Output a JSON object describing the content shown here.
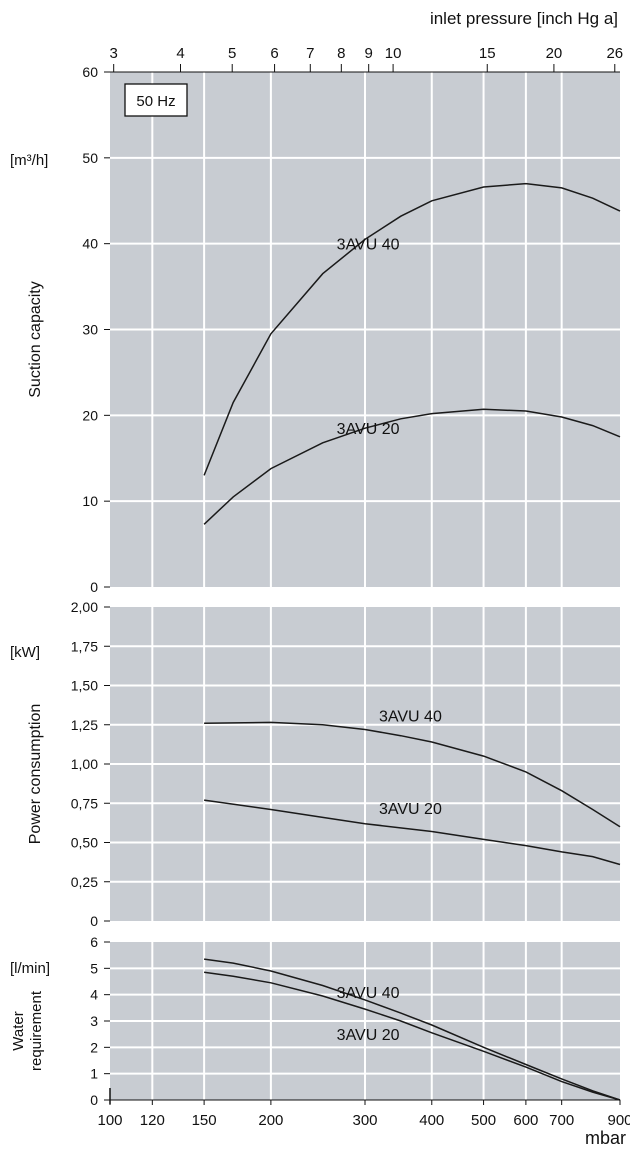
{
  "chart_data": [
    {
      "type": "line",
      "x_scale": "log",
      "xlim": [
        100,
        900
      ],
      "ylim": [
        0,
        60
      ],
      "ylabel": "Suction capacity",
      "unit": "[m³/h]",
      "y_ticks": [
        "0",
        "10",
        "20",
        "30",
        "40",
        "50",
        "60"
      ],
      "badge": "50 Hz",
      "top_axis": {
        "label": "inlet pressure [inch Hg a]",
        "ticks": [
          {
            "label": "3",
            "mbar": 101.6
          },
          {
            "label": "4",
            "mbar": 135.5
          },
          {
            "label": "5",
            "mbar": 169.3
          },
          {
            "label": "6",
            "mbar": 203.2
          },
          {
            "label": "7",
            "mbar": 237.0
          },
          {
            "label": "8",
            "mbar": 270.9
          },
          {
            "label": "9",
            "mbar": 304.8
          },
          {
            "label": "10",
            "mbar": 338.6
          },
          {
            "label": "15",
            "mbar": 508
          },
          {
            "label": "20",
            "mbar": 677
          },
          {
            "label": "26",
            "mbar": 880
          }
        ]
      },
      "series": [
        {
          "name": "3AVU 40",
          "x": [
            150,
            170,
            200,
            250,
            300,
            350,
            400,
            500,
            600,
            700,
            800,
            900
          ],
          "y": [
            13.0,
            21.5,
            29.5,
            36.5,
            40.5,
            43.2,
            45.0,
            46.6,
            47.0,
            46.5,
            45.3,
            43.8
          ]
        },
        {
          "name": "3AVU 20",
          "x": [
            150,
            170,
            200,
            250,
            300,
            350,
            400,
            500,
            600,
            700,
            800,
            900
          ],
          "y": [
            7.3,
            10.5,
            13.8,
            16.8,
            18.5,
            19.6,
            20.2,
            20.7,
            20.5,
            19.8,
            18.8,
            17.5
          ]
        }
      ],
      "series_labels": [
        {
          "text": "3AVU 40",
          "x": 250,
          "y": 40
        },
        {
          "text": "3AVU 20",
          "x": 250,
          "y": 18.5
        }
      ]
    },
    {
      "type": "line",
      "x_scale": "log",
      "xlim": [
        100,
        900
      ],
      "ylim": [
        0,
        2
      ],
      "ylabel": "Power consumption",
      "unit": "[kW]",
      "y_ticks": [
        "0",
        "0,25",
        "0,50",
        "0,75",
        "1,00",
        "1,25",
        "1,50",
        "1,75",
        "2,00"
      ],
      "series": [
        {
          "name": "3AVU 40",
          "x": [
            150,
            200,
            250,
            300,
            350,
            400,
            500,
            600,
            700,
            800,
            900
          ],
          "y": [
            1.26,
            1.265,
            1.25,
            1.22,
            1.18,
            1.14,
            1.05,
            0.95,
            0.83,
            0.71,
            0.6
          ]
        },
        {
          "name": "3AVU 20",
          "x": [
            150,
            200,
            250,
            300,
            400,
            500,
            600,
            700,
            800,
            900
          ],
          "y": [
            0.77,
            0.71,
            0.66,
            0.62,
            0.57,
            0.52,
            0.48,
            0.44,
            0.41,
            0.36
          ]
        }
      ],
      "series_labels": [
        {
          "text": "3AVU 40",
          "x": 300,
          "y": 1.31
        },
        {
          "text": "3AVU 20",
          "x": 300,
          "y": 0.72
        }
      ]
    },
    {
      "type": "line",
      "x_scale": "log",
      "xlim": [
        100,
        900
      ],
      "ylim": [
        0,
        6
      ],
      "ylabel": "Water requirement",
      "unit": "[l/min]",
      "xlabel": "mbar",
      "y_ticks": [
        "0",
        "1",
        "2",
        "3",
        "4",
        "5",
        "6"
      ],
      "x_ticks": [
        "100",
        "120",
        "150",
        "200",
        "300",
        "400",
        "500",
        "600",
        "700",
        "900"
      ],
      "x_tick_values": [
        100,
        120,
        150,
        200,
        300,
        400,
        500,
        600,
        700,
        900
      ],
      "series": [
        {
          "name": "3AVU 40",
          "x": [
            150,
            170,
            200,
            250,
            300,
            350,
            400,
            500,
            600,
            700,
            800,
            900
          ],
          "y": [
            5.35,
            5.2,
            4.9,
            4.35,
            3.8,
            3.3,
            2.85,
            2.0,
            1.35,
            0.8,
            0.35,
            0.0
          ]
        },
        {
          "name": "3AVU 20",
          "x": [
            150,
            170,
            200,
            250,
            300,
            350,
            400,
            500,
            600,
            700,
            800,
            900
          ],
          "y": [
            4.85,
            4.7,
            4.45,
            3.95,
            3.45,
            3.0,
            2.55,
            1.85,
            1.25,
            0.7,
            0.3,
            0.0
          ]
        }
      ],
      "series_labels": [
        {
          "text": "3AVU 40",
          "x": 250,
          "y": 4.1
        },
        {
          "text": "3AVU 20",
          "x": 250,
          "y": 2.5
        }
      ]
    }
  ]
}
